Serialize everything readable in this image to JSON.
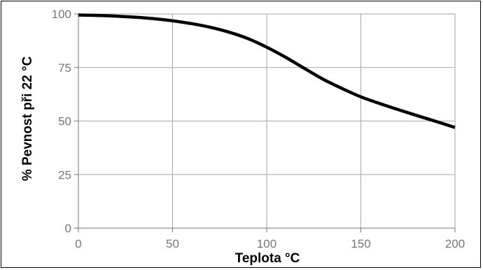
{
  "chart_data": {
    "type": "line",
    "title": "",
    "xlabel": "Teplota °C",
    "ylabel": "% Pevnost při 22 °C",
    "xlim": [
      0,
      200
    ],
    "ylim": [
      0,
      100
    ],
    "x_ticks": [
      "0",
      "50",
      "100",
      "150",
      "200"
    ],
    "y_ticks": [
      "0",
      "25",
      "50",
      "75",
      "100"
    ],
    "grid": true,
    "legend": "none",
    "series": [
      {
        "color": "#000000",
        "x": [
          0,
          10,
          20,
          30,
          40,
          50,
          60,
          70,
          80,
          90,
          100,
          110,
          120,
          130,
          140,
          150,
          160,
          170,
          180,
          190,
          200
        ],
        "y": [
          99.5,
          99.3,
          99.0,
          98.5,
          97.8,
          96.8,
          95.5,
          93.8,
          91.5,
          88.5,
          84.5,
          79.8,
          74.6,
          69.5,
          65.2,
          61.3,
          58.2,
          55.3,
          52.5,
          49.8,
          47.0
        ]
      }
    ]
  }
}
